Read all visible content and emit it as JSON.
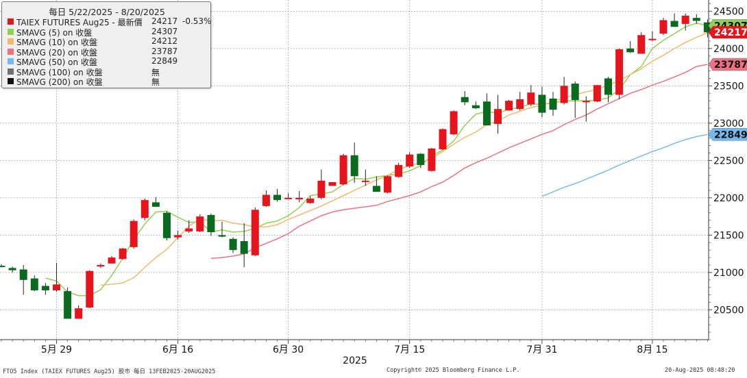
{
  "chart_data": {
    "type": "candlestick",
    "title": "每日 5/22/2025 - 8/20/2025",
    "xlabel": "2025",
    "x_ticks": [
      "5月 29",
      "6月 16",
      "6月 30",
      "7月 15",
      "7月 31",
      "8月 15"
    ],
    "y_ticks": [
      20500,
      21000,
      21500,
      22000,
      22500,
      23000,
      23500,
      24000,
      24500
    ],
    "ylim": [
      20100,
      24650
    ],
    "grid": true,
    "legend_position": "top-left",
    "up_color": "#e8141c",
    "down_color": "#0a6b1e",
    "candles": [
      {
        "o": 21090,
        "h": 21110,
        "l": 21070,
        "c": 21080
      },
      {
        "o": 21060,
        "h": 21080,
        "l": 21000,
        "c": 21030
      },
      {
        "o": 21040,
        "h": 21100,
        "l": 20700,
        "c": 20900
      },
      {
        "o": 20920,
        "h": 20960,
        "l": 20750,
        "c": 20760
      },
      {
        "o": 20820,
        "h": 20860,
        "l": 20700,
        "c": 20760
      },
      {
        "o": 20760,
        "h": 21130,
        "l": 20740,
        "c": 20840
      },
      {
        "o": 20750,
        "h": 20800,
        "l": 20380,
        "c": 20380
      },
      {
        "o": 20380,
        "h": 20560,
        "l": 20380,
        "c": 20520
      },
      {
        "o": 20530,
        "h": 21030,
        "l": 20520,
        "c": 21020
      },
      {
        "o": 21080,
        "h": 21120,
        "l": 21060,
        "c": 21100
      },
      {
        "o": 21120,
        "h": 21220,
        "l": 21120,
        "c": 21200
      },
      {
        "o": 21180,
        "h": 21330,
        "l": 21170,
        "c": 21320
      },
      {
        "o": 21340,
        "h": 21710,
        "l": 21320,
        "c": 21690
      },
      {
        "o": 21730,
        "h": 21990,
        "l": 21700,
        "c": 21970
      },
      {
        "o": 21940,
        "h": 22010,
        "l": 21880,
        "c": 21880
      },
      {
        "o": 21800,
        "h": 21820,
        "l": 21430,
        "c": 21460
      },
      {
        "o": 21470,
        "h": 21560,
        "l": 21440,
        "c": 21500
      },
      {
        "o": 21550,
        "h": 21700,
        "l": 21530,
        "c": 21590
      },
      {
        "o": 21550,
        "h": 21780,
        "l": 21540,
        "c": 21750
      },
      {
        "o": 21770,
        "h": 21790,
        "l": 21490,
        "c": 21540
      },
      {
        "o": 21500,
        "h": 21680,
        "l": 21470,
        "c": 21480
      },
      {
        "o": 21450,
        "h": 21470,
        "l": 21260,
        "c": 21300
      },
      {
        "o": 21420,
        "h": 21660,
        "l": 21070,
        "c": 21250
      },
      {
        "o": 21230,
        "h": 21870,
        "l": 21220,
        "c": 21840
      },
      {
        "o": 21890,
        "h": 22100,
        "l": 21880,
        "c": 22040
      },
      {
        "o": 22040,
        "h": 22120,
        "l": 21950,
        "c": 21970
      },
      {
        "o": 21990,
        "h": 22060,
        "l": 21980,
        "c": 22000
      },
      {
        "o": 21980,
        "h": 22090,
        "l": 21940,
        "c": 22000
      },
      {
        "o": 21930,
        "h": 22020,
        "l": 21920,
        "c": 21990
      },
      {
        "o": 22000,
        "h": 22380,
        "l": 21980,
        "c": 22230
      },
      {
        "o": 22160,
        "h": 22210,
        "l": 22160,
        "c": 22210
      },
      {
        "o": 22180,
        "h": 22590,
        "l": 22170,
        "c": 22570
      },
      {
        "o": 22570,
        "h": 22740,
        "l": 22200,
        "c": 22290
      },
      {
        "o": 22230,
        "h": 22380,
        "l": 22160,
        "c": 22230
      },
      {
        "o": 22160,
        "h": 22290,
        "l": 22080,
        "c": 22080
      },
      {
        "o": 22070,
        "h": 22300,
        "l": 22060,
        "c": 22290
      },
      {
        "o": 22280,
        "h": 22470,
        "l": 22270,
        "c": 22440
      },
      {
        "o": 22420,
        "h": 22610,
        "l": 22400,
        "c": 22580
      },
      {
        "o": 22590,
        "h": 22600,
        "l": 22400,
        "c": 22440
      },
      {
        "o": 22360,
        "h": 22670,
        "l": 22350,
        "c": 22660
      },
      {
        "o": 22650,
        "h": 22930,
        "l": 22640,
        "c": 22920
      },
      {
        "o": 22850,
        "h": 23170,
        "l": 22840,
        "c": 23160
      },
      {
        "o": 23350,
        "h": 23430,
        "l": 23240,
        "c": 23280
      },
      {
        "o": 23240,
        "h": 23290,
        "l": 23190,
        "c": 23200
      },
      {
        "o": 23290,
        "h": 23400,
        "l": 23010,
        "c": 22970
      },
      {
        "o": 22990,
        "h": 23380,
        "l": 22860,
        "c": 23190
      },
      {
        "o": 23170,
        "h": 23310,
        "l": 23170,
        "c": 23300
      },
      {
        "o": 23190,
        "h": 23420,
        "l": 23170,
        "c": 23320
      },
      {
        "o": 23250,
        "h": 23510,
        "l": 23230,
        "c": 23410
      },
      {
        "o": 23380,
        "h": 23490,
        "l": 23080,
        "c": 23140
      },
      {
        "o": 23330,
        "h": 23420,
        "l": 23100,
        "c": 23180
      },
      {
        "o": 23270,
        "h": 23620,
        "l": 23250,
        "c": 23500
      },
      {
        "o": 23530,
        "h": 23560,
        "l": 23070,
        "c": 23310
      },
      {
        "o": 23280,
        "h": 23360,
        "l": 23020,
        "c": 23300
      },
      {
        "o": 23290,
        "h": 23510,
        "l": 23280,
        "c": 23510
      },
      {
        "o": 23600,
        "h": 23620,
        "l": 23280,
        "c": 23380
      },
      {
        "o": 23380,
        "h": 24000,
        "l": 23320,
        "c": 23990
      },
      {
        "o": 24000,
        "h": 24100,
        "l": 23940,
        "c": 23950
      },
      {
        "o": 23930,
        "h": 24220,
        "l": 23930,
        "c": 24180
      },
      {
        "o": 24130,
        "h": 24230,
        "l": 24100,
        "c": 24130
      },
      {
        "o": 24200,
        "h": 24410,
        "l": 24180,
        "c": 24380
      },
      {
        "o": 24370,
        "h": 24470,
        "l": 24310,
        "c": 24290
      },
      {
        "o": 24330,
        "h": 24470,
        "l": 24240,
        "c": 24440
      },
      {
        "o": 24410,
        "h": 24460,
        "l": 24330,
        "c": 24370
      },
      {
        "o": 24350,
        "h": 24390,
        "l": 24150,
        "c": 24217
      }
    ],
    "series": [
      {
        "name": "SMAVG (5)  on 收盤",
        "color": "#92d050",
        "values": [
          null,
          null,
          null,
          null,
          20925,
          20885,
          20740,
          20690,
          20690,
          20770,
          20960,
          21190,
          21440,
          21650,
          21810,
          21820,
          21740,
          21670,
          21680,
          21540,
          21570,
          21540,
          21550,
          21590,
          21660,
          21690,
          21760,
          21870,
          22030,
          22050,
          22080,
          22180,
          22260,
          22250,
          22280,
          22300,
          22320,
          22360,
          22430,
          22560,
          22640,
          22760,
          22970,
          23120,
          23160,
          23130,
          23190,
          23210,
          23260,
          23250,
          23270,
          23300,
          23300,
          23300,
          23310,
          23340,
          23450,
          23650,
          23760,
          24000,
          24110,
          24200,
          24290,
          24340,
          24307
        ]
      },
      {
        "name": "SMAVG (10)  on 收盤",
        "color": "#f5b86a",
        "values": [
          null,
          null,
          null,
          null,
          null,
          null,
          null,
          null,
          null,
          20830,
          20840,
          20860,
          20930,
          21070,
          21200,
          21310,
          21470,
          21620,
          21720,
          21690,
          21700,
          21660,
          21640,
          21610,
          21610,
          21640,
          21710,
          21770,
          21830,
          21890,
          21960,
          22030,
          22100,
          22170,
          22240,
          22300,
          22380,
          22430,
          22470,
          22530,
          22620,
          22720,
          22810,
          22880,
          22980,
          23030,
          23110,
          23160,
          23210,
          23240,
          23290,
          23340,
          23380,
          23420,
          23450,
          23510,
          23570,
          23650,
          23730,
          23830,
          23910,
          24000,
          24080,
          24150,
          24212
        ]
      },
      {
        "name": "SMAVG (20)  on 收盤",
        "color": "#f07080",
        "values": [
          null,
          null,
          null,
          null,
          null,
          null,
          null,
          null,
          null,
          null,
          null,
          null,
          null,
          null,
          null,
          null,
          null,
          null,
          null,
          21190,
          21200,
          21220,
          21250,
          21330,
          21390,
          21450,
          21520,
          21620,
          21690,
          21760,
          21810,
          21840,
          21860,
          21880,
          21900,
          21950,
          21990,
          22030,
          22080,
          22150,
          22210,
          22300,
          22400,
          22470,
          22530,
          22600,
          22670,
          22730,
          22790,
          22850,
          22900,
          22980,
          23050,
          23110,
          23190,
          23260,
          23330,
          23400,
          23450,
          23510,
          23560,
          23620,
          23680,
          23760,
          23787
        ]
      },
      {
        "name": "SMAVG (50)  on 收盤",
        "color": "#75b9ee",
        "values": [
          null,
          null,
          null,
          null,
          null,
          null,
          null,
          null,
          null,
          null,
          null,
          null,
          null,
          null,
          null,
          null,
          null,
          null,
          null,
          null,
          null,
          null,
          null,
          null,
          null,
          null,
          null,
          null,
          null,
          null,
          null,
          null,
          null,
          null,
          null,
          null,
          null,
          null,
          null,
          null,
          null,
          null,
          null,
          null,
          null,
          null,
          null,
          null,
          null,
          22020,
          22080,
          22140,
          22190,
          22250,
          22310,
          22370,
          22440,
          22500,
          22560,
          22620,
          22670,
          22730,
          22780,
          22820,
          22849
        ]
      }
    ],
    "legend": [
      {
        "name": "TAIEX FUTURES Aug25 - 最新價",
        "value": "24217",
        "change": "-0.53%",
        "color": "#e8141c"
      },
      {
        "name": "SMAVG (5)  on 收盤",
        "value": "24307",
        "color": "#92d050"
      },
      {
        "name": "SMAVG (10)  on 收盤",
        "value": "24212",
        "color": "#f5b86a"
      },
      {
        "name": "SMAVG (20)  on 收盤",
        "value": "23787",
        "color": "#f07080"
      },
      {
        "name": "SMAVG (50)  on 收盤",
        "value": "22849",
        "color": "#75b9ee"
      },
      {
        "name": "SMAVG (100)  on 收盤",
        "value": "無",
        "color": "#707070"
      },
      {
        "name": "SMAVG (200)  on 收盤",
        "value": "無",
        "color": "#111111"
      }
    ],
    "price_tags": [
      {
        "value": "24307",
        "y": 24307,
        "color": "#92d050"
      },
      {
        "value": "24217",
        "y": 24217,
        "color": "#e8141c"
      },
      {
        "value": "23787",
        "y": 23787,
        "color": "#f07080"
      },
      {
        "value": "22849",
        "y": 22849,
        "color": "#75b9ee"
      }
    ]
  },
  "footer": {
    "left": "FTO5 Index (TAIEX FUTURES    Aug25) 股市  每日 13FEB2025-20AUG2025",
    "center": "Copyright© 2025 Bloomberg Finance L.P.",
    "right": "20-Aug-2025 08:48:20"
  }
}
